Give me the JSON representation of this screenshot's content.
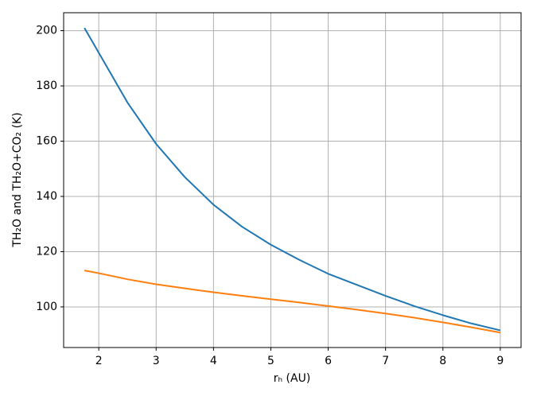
{
  "chart_data": {
    "type": "line",
    "xlabel": "rₕ (AU)",
    "ylabel": "TH₂O and TH₂O+CO₂ (K)",
    "x": [
      1.75,
      2,
      2.5,
      3,
      3.5,
      4,
      4.5,
      5,
      5.5,
      6,
      6.5,
      7,
      7.5,
      8,
      8.5,
      9
    ],
    "series": [
      {
        "color": "#1f77b4",
        "values": [
          201,
          192,
          174,
          159,
          147,
          137,
          129,
          122.5,
          117,
          112,
          108,
          104,
          100.3,
          97,
          94,
          91.5
        ]
      },
      {
        "color": "#ff7f0e",
        "values": [
          113.2,
          112.2,
          110,
          108.2,
          106.7,
          105.3,
          104,
          102.8,
          101.6,
          100.3,
          99,
          97.6,
          96.1,
          94.4,
          92.6,
          90.7
        ]
      }
    ],
    "xlim": [
      1.3875,
      9.3625
    ],
    "xticks": [
      2,
      3,
      4,
      5,
      6,
      7,
      8,
      9
    ],
    "ylim": [
      85.3,
      206.5
    ],
    "yticks": [
      100,
      120,
      140,
      160,
      180,
      200
    ],
    "grid": true
  }
}
